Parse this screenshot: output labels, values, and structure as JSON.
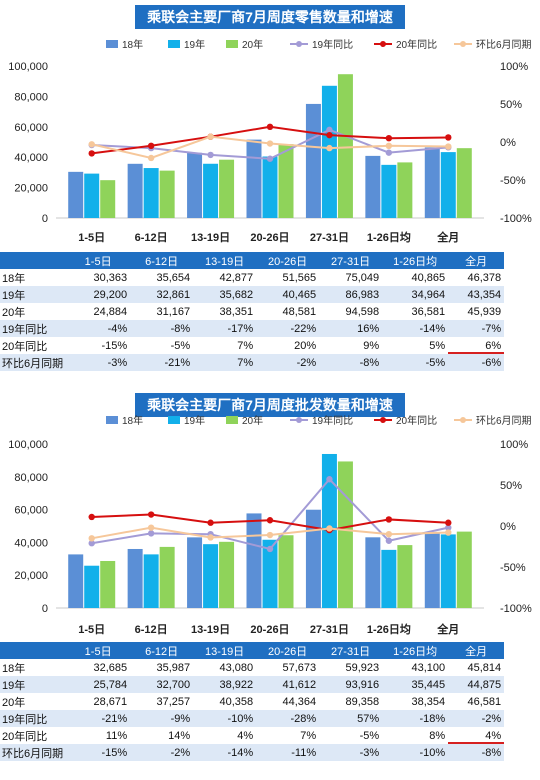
{
  "colors": {
    "y18": "#5b8fd6",
    "y19": "#12b0ea",
    "y20": "#8fd35a",
    "line19": "#a39bd6",
    "line20": "#d60f0f",
    "lineMoM": "#f6c79a",
    "title_bg": "#1f6fc2",
    "header_bg": "#1f6fc2",
    "band": "#dde8f6"
  },
  "charts": [
    {
      "title": "乘联会主要厂商7月周度零售数量和增速",
      "legend": [
        "18年",
        "19年",
        "20年",
        "19年同比",
        "20年同比",
        "环比6月同期"
      ],
      "table": {
        "header": [
          "",
          "1-5日",
          "6-12日",
          "13-19日",
          "20-26日",
          "27-31日",
          "1-26日均",
          "全月"
        ],
        "rows": [
          {
            "label": "18年",
            "cells": [
              "30,363",
              "35,654",
              "42,877",
              "51,565",
              "75,049",
              "40,865",
              "46,378"
            ]
          },
          {
            "label": "19年",
            "cells": [
              "29,200",
              "32,861",
              "35,682",
              "40,465",
              "86,983",
              "34,964",
              "43,354"
            ]
          },
          {
            "label": "20年",
            "cells": [
              "24,884",
              "31,167",
              "38,351",
              "48,581",
              "94,598",
              "36,581",
              "45,939"
            ]
          },
          {
            "label": "19年同比",
            "cells": [
              "-4%",
              "-8%",
              "-17%",
              "-22%",
              "16%",
              "-14%",
              "-7%"
            ]
          },
          {
            "label": "20年同比",
            "cells": [
              "-15%",
              "-5%",
              "7%",
              "20%",
              "9%",
              "5%",
              "6%"
            ]
          },
          {
            "label": "环比6月同期",
            "cells": [
              "-3%",
              "-21%",
              "7%",
              "-2%",
              "-8%",
              "-5%",
              "-6%"
            ]
          }
        ]
      }
    },
    {
      "title": "乘联会主要厂商7月周度批发数量和增速",
      "legend": [
        "18年",
        "19年",
        "20年",
        "19年同比",
        "20年同比",
        "环比6月同期"
      ],
      "table": {
        "header": [
          "",
          "1-5日",
          "6-12日",
          "13-19日",
          "20-26日",
          "27-31日",
          "1-26日均",
          "全月"
        ],
        "rows": [
          {
            "label": "18年",
            "cells": [
              "32,685",
              "35,987",
              "43,080",
              "57,673",
              "59,923",
              "43,100",
              "45,814"
            ]
          },
          {
            "label": "19年",
            "cells": [
              "25,784",
              "32,700",
              "38,922",
              "41,612",
              "93,916",
              "35,445",
              "44,875"
            ]
          },
          {
            "label": "20年",
            "cells": [
              "28,671",
              "37,257",
              "40,358",
              "44,364",
              "89,358",
              "38,354",
              "46,581"
            ]
          },
          {
            "label": "19年同比",
            "cells": [
              "-21%",
              "-9%",
              "-10%",
              "-28%",
              "57%",
              "-18%",
              "-2%"
            ]
          },
          {
            "label": "20年同比",
            "cells": [
              "11%",
              "14%",
              "4%",
              "7%",
              "-5%",
              "8%",
              "4%"
            ]
          },
          {
            "label": "环比6月同期",
            "cells": [
              "-15%",
              "-2%",
              "-14%",
              "-11%",
              "-3%",
              "-10%",
              "-8%"
            ]
          }
        ]
      }
    }
  ],
  "chart_data": [
    {
      "type": "bar",
      "title": "乘联会主要厂商7月周度零售数量和增速",
      "categories": [
        "1-5日",
        "6-12日",
        "13-19日",
        "20-26日",
        "27-31日",
        "1-26日均",
        "全月"
      ],
      "series": [
        {
          "name": "18年",
          "kind": "bar",
          "values": [
            30363,
            35654,
            42877,
            51565,
            75049,
            40865,
            46378
          ]
        },
        {
          "name": "19年",
          "kind": "bar",
          "values": [
            29200,
            32861,
            35682,
            40465,
            86983,
            34964,
            43354
          ]
        },
        {
          "name": "20年",
          "kind": "bar",
          "values": [
            24884,
            31167,
            38351,
            48581,
            94598,
            36581,
            45939
          ]
        },
        {
          "name": "19年同比",
          "kind": "line",
          "axis": "right",
          "values": [
            -4,
            -8,
            -17,
            -22,
            16,
            -14,
            -7
          ]
        },
        {
          "name": "20年同比",
          "kind": "line",
          "axis": "right",
          "values": [
            -15,
            -5,
            7,
            20,
            9,
            5,
            6
          ]
        },
        {
          "name": "环比6月同期",
          "kind": "line",
          "axis": "right",
          "values": [
            -3,
            -21,
            7,
            -2,
            -8,
            -5,
            -6
          ]
        }
      ],
      "ylim": [
        0,
        100000
      ],
      "yticks": [
        "0",
        "20,000",
        "40,000",
        "60,000",
        "80,000",
        "100,000"
      ],
      "y2lim": [
        -100,
        100
      ],
      "y2ticks": [
        "-100%",
        "-50%",
        "0%",
        "50%",
        "100%"
      ],
      "legend_position": "top",
      "grid": false
    },
    {
      "type": "bar",
      "title": "乘联会主要厂商7月周度批发数量和增速",
      "categories": [
        "1-5日",
        "6-12日",
        "13-19日",
        "20-26日",
        "27-31日",
        "1-26日均",
        "全月"
      ],
      "series": [
        {
          "name": "18年",
          "kind": "bar",
          "values": [
            32685,
            35987,
            43080,
            57673,
            59923,
            43100,
            45814
          ]
        },
        {
          "name": "19年",
          "kind": "bar",
          "values": [
            25784,
            32700,
            38922,
            41612,
            93916,
            35445,
            44875
          ]
        },
        {
          "name": "20年",
          "kind": "bar",
          "values": [
            28671,
            37257,
            40358,
            44364,
            89358,
            38354,
            46581
          ]
        },
        {
          "name": "19年同比",
          "kind": "line",
          "axis": "right",
          "values": [
            -21,
            -9,
            -10,
            -28,
            57,
            -18,
            -2
          ]
        },
        {
          "name": "20年同比",
          "kind": "line",
          "axis": "right",
          "values": [
            11,
            14,
            4,
            7,
            -5,
            8,
            4
          ]
        },
        {
          "name": "环比6月同期",
          "kind": "line",
          "axis": "right",
          "values": [
            -15,
            -2,
            -14,
            -11,
            -3,
            -10,
            -8
          ]
        }
      ],
      "ylim": [
        0,
        100000
      ],
      "yticks": [
        "0",
        "20,000",
        "40,000",
        "60,000",
        "80,000",
        "100,000"
      ],
      "y2lim": [
        -100,
        100
      ],
      "y2ticks": [
        "-100%",
        "-50%",
        "0%",
        "50%",
        "100%"
      ],
      "legend_position": "top",
      "grid": false
    }
  ]
}
